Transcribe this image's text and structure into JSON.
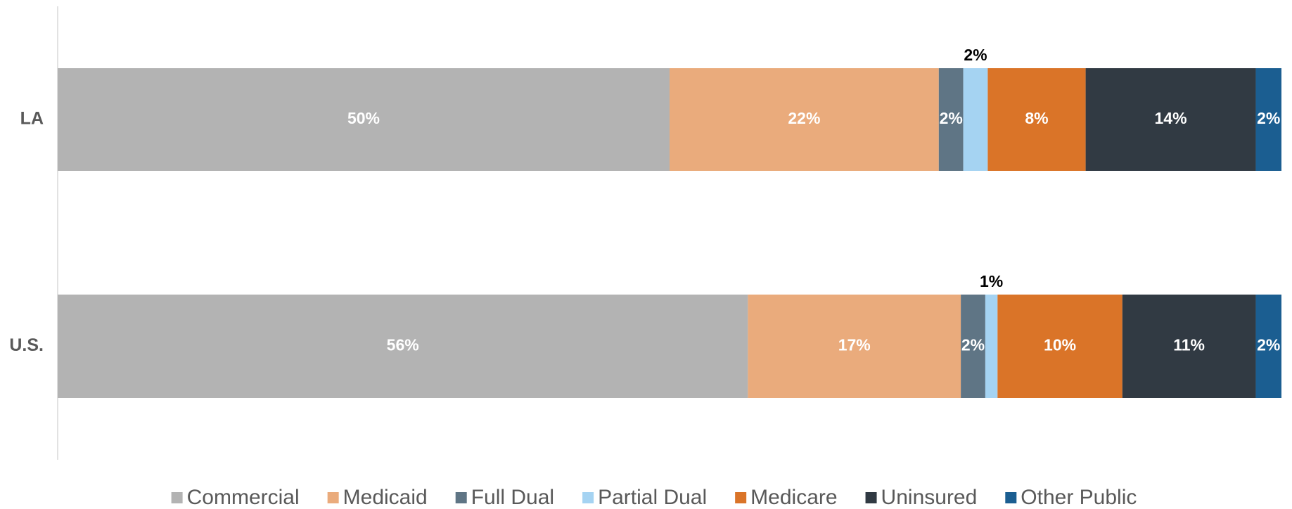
{
  "chart_data": {
    "type": "stacked-bar-horizontal",
    "categories": [
      "LA",
      "U.S."
    ],
    "xlim": [
      0,
      100
    ],
    "series": [
      {
        "name": "Commercial",
        "color": "#b3b3b3",
        "values": [
          50.0,
          56.4
        ],
        "value_labels": [
          "50%",
          "56%"
        ]
      },
      {
        "name": "Medicaid",
        "color": "#eaab7c",
        "values": [
          22.0,
          17.4
        ],
        "value_labels": [
          "22%",
          "17%"
        ]
      },
      {
        "name": "Full Dual",
        "color": "#5f7585",
        "values": [
          2.0,
          2.0
        ],
        "value_labels": [
          "2%",
          "2%"
        ]
      },
      {
        "name": "Partial Dual",
        "color": "#a5d3f2",
        "values": [
          2.0,
          1.0
        ],
        "value_labels": [
          "2%",
          "1%"
        ],
        "label_position": "above"
      },
      {
        "name": "Medicare",
        "color": "#da7428",
        "values": [
          8.0,
          10.2
        ],
        "value_labels": [
          "8%",
          "10%"
        ]
      },
      {
        "name": "Uninsured",
        "color": "#313a43",
        "values": [
          13.9,
          10.9
        ],
        "value_labels": [
          "14%",
          "11%"
        ]
      },
      {
        "name": "Other Public",
        "color": "#1b5e91",
        "values": [
          2.1,
          2.1
        ],
        "value_labels": [
          "2%",
          "2%"
        ]
      }
    ],
    "legend": "bottom"
  }
}
